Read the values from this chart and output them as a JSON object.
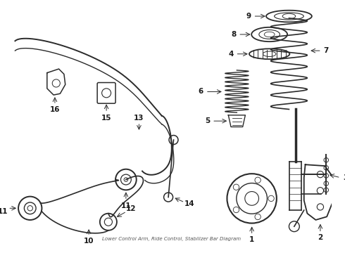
{
  "bg_color": "#ffffff",
  "line_color": "#2a2a2a",
  "label_color": "#1a1a1a",
  "fig_w": 4.9,
  "fig_h": 3.6,
  "dpi": 100,
  "subtitle": "Lower Control Arm, Ride Control, Stabilizer Bar Diagram",
  "xmin": 0,
  "xmax": 490,
  "ymin": 0,
  "ymax": 360
}
